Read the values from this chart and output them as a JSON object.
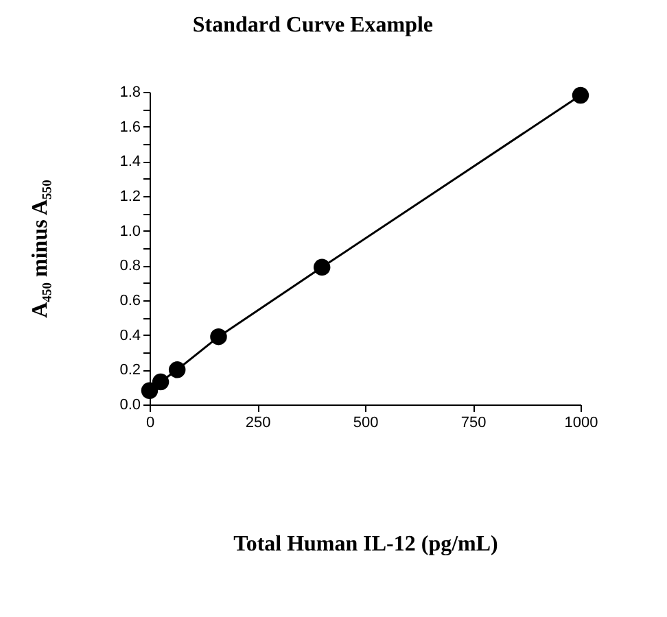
{
  "chart_data": {
    "type": "line",
    "title": "Standard Curve Example",
    "xlabel": "Total Human IL-12 (pg/mL)",
    "ylabel": "A₄₅₀ minus A₅₅₀",
    "x": [
      0,
      25.6,
      64,
      160,
      400,
      1000
    ],
    "series": [
      {
        "color": "#000000",
        "values": [
          0.08,
          0.13,
          0.2,
          0.39,
          0.79,
          1.78
        ]
      }
    ],
    "xlim": [
      0,
      1000
    ],
    "xticks": [
      0,
      250,
      500,
      750,
      1000
    ],
    "ylim": [
      0,
      1.8
    ],
    "yticks": [
      {
        "value": 0,
        "label": "0.0"
      },
      {
        "value": 0.1,
        "label": null
      },
      {
        "value": 0.2,
        "label": "0.2"
      },
      {
        "value": 0.3,
        "label": null
      },
      {
        "value": 0.4,
        "label": "0.4"
      },
      {
        "value": 0.5,
        "label": null
      },
      {
        "value": 0.6,
        "label": "0.6"
      },
      {
        "value": 0.7,
        "label": null
      },
      {
        "value": 0.8,
        "label": "0.8"
      },
      {
        "value": 0.9,
        "label": null
      },
      {
        "value": 1.0,
        "label": "1.0"
      },
      {
        "value": 1.1,
        "label": null
      },
      {
        "value": 1.2,
        "label": "1.2"
      },
      {
        "value": 1.3,
        "label": null
      },
      {
        "value": 1.4,
        "label": "1.4"
      },
      {
        "value": 1.5,
        "label": null
      },
      {
        "value": 1.6,
        "label": "1.6"
      },
      {
        "value": 1.7,
        "label": null
      },
      {
        "value": 1.8,
        "label": "1.8"
      }
    ],
    "marker": "circle",
    "line_style": "solid",
    "grid": false
  }
}
